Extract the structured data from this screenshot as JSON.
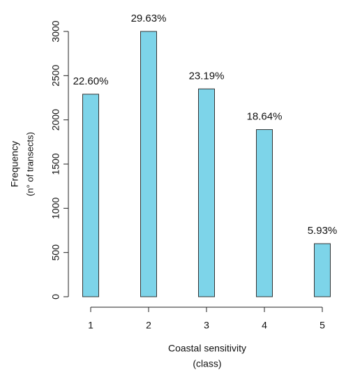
{
  "chart_data": {
    "type": "bar",
    "xlabel": [
      "Coastal sensitivity",
      "(class)"
    ],
    "ylabel": [
      "Frequency",
      "(n° of transects)"
    ],
    "x": [
      1,
      2,
      3,
      4,
      5
    ],
    "values": [
      2290,
      3000,
      2350,
      1890,
      600
    ],
    "value_labels": [
      "22.60%",
      "29.63%",
      "23.19%",
      "18.64%",
      "5.93%"
    ],
    "color": "#7dd4e9",
    "xlim": [
      1,
      5
    ],
    "xticks": [
      1,
      2,
      3,
      4,
      5
    ],
    "ylim": [
      0,
      3000
    ],
    "yticks": [
      0,
      500,
      1000,
      1500,
      2000,
      2500,
      3000
    ],
    "grid": false
  }
}
